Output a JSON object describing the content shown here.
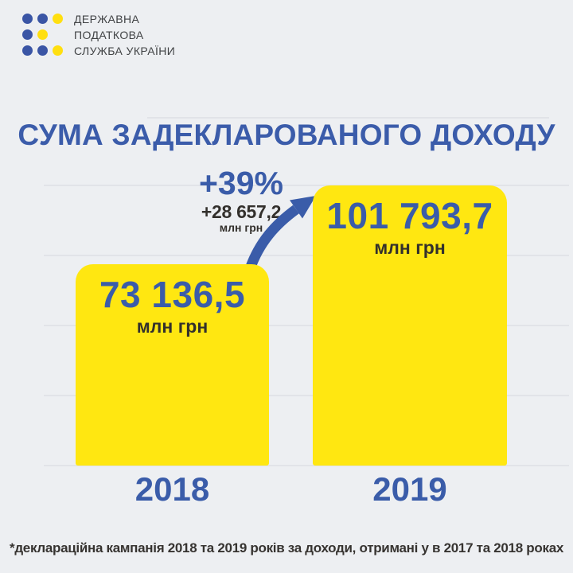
{
  "logo": {
    "org_lines": [
      "ДЕРЖАВНА",
      "ПОДАТКОВА",
      "СЛУЖБА УКРАЇНИ"
    ],
    "dot_colors": {
      "blue": "#3a55a5",
      "yellow": "#ffdf10"
    },
    "dot_grid": [
      [
        "blue",
        "blue",
        "yellow"
      ],
      [
        "blue",
        "yellow",
        ""
      ],
      [
        "blue",
        "blue",
        "yellow"
      ]
    ]
  },
  "title": "СУМА ЗАДЕКЛАРОВАНОГО ДОХОДУ",
  "chart_data": {
    "type": "bar",
    "title": "СУМА ЗАДЕКЛАРОВАНОГО ДОХОДУ",
    "categories": [
      "2018",
      "2019"
    ],
    "values": [
      73136.5,
      101793.7
    ],
    "value_labels": [
      "73 136,5",
      "101 793,7"
    ],
    "unit": "млн грн",
    "annotation": {
      "percent": "+39%",
      "delta": "+28 657,2",
      "delta_unit": "млн грн"
    },
    "ylim": [
      0,
      101793.7
    ],
    "grid": true,
    "legend": "none",
    "bar_color": "#ffe711",
    "value_color": "#3a5ca9"
  },
  "footnote": "*деклараційна кампанія 2018 та 2019 років за доходи, отримані у в 2017 та 2018 роках",
  "colors": {
    "background": "#edeff2",
    "accent_blue": "#3a5ca9",
    "accent_yellow": "#ffe711",
    "dark_text": "#33302c",
    "gridline": "#e1e3e8"
  }
}
